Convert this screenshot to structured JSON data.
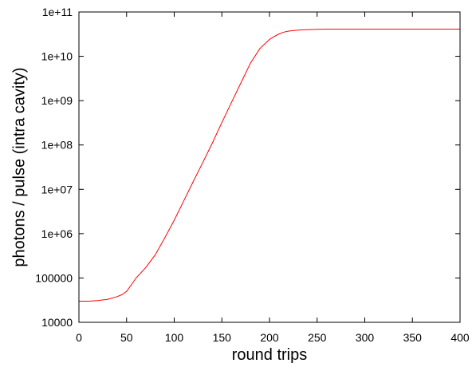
{
  "chart_data": {
    "type": "line",
    "title": "",
    "xlabel": "round trips",
    "ylabel": "photons / pulse (intra cavity)",
    "xlim": [
      0,
      400
    ],
    "ylim": [
      10000,
      100000000000
    ],
    "yscale": "log",
    "grid": false,
    "legend": "none",
    "x_ticks": [
      0,
      50,
      100,
      150,
      200,
      250,
      300,
      350,
      400
    ],
    "x_tick_labels": [
      "0",
      "50",
      "100",
      "150",
      "200",
      "250",
      "300",
      "350",
      "400"
    ],
    "y_ticks": [
      10000,
      100000,
      1000000,
      10000000,
      100000000,
      1000000000,
      10000000000,
      100000000000
    ],
    "y_tick_labels": [
      "10000",
      "100000",
      "1e+06",
      "1e+07",
      "1e+08",
      "1e+09",
      "1e+10",
      "1e+11"
    ],
    "series": [
      {
        "color": "#ff0000",
        "x": [
          0,
          10,
          20,
          30,
          40,
          45,
          50,
          55,
          60,
          70,
          80,
          90,
          100,
          110,
          120,
          130,
          140,
          150,
          160,
          170,
          180,
          190,
          200,
          205,
          210,
          215,
          220,
          225,
          230,
          240,
          250,
          260,
          280,
          300,
          350,
          400
        ],
        "y": [
          30000,
          30000,
          31000,
          33000,
          38000,
          42000,
          50000,
          70000,
          100000,
          170000,
          330000,
          800000,
          2000000,
          5500000,
          15000000,
          40000000,
          110000000,
          320000000,
          900000000,
          2500000000,
          7000000000,
          15000000000,
          24000000000,
          28000000000,
          32000000000,
          35000000000,
          37000000000,
          38000000000,
          39000000000,
          40000000000,
          40500000000,
          41000000000,
          41000000000,
          41000000000,
          41000000000,
          41000000000
        ]
      }
    ]
  }
}
